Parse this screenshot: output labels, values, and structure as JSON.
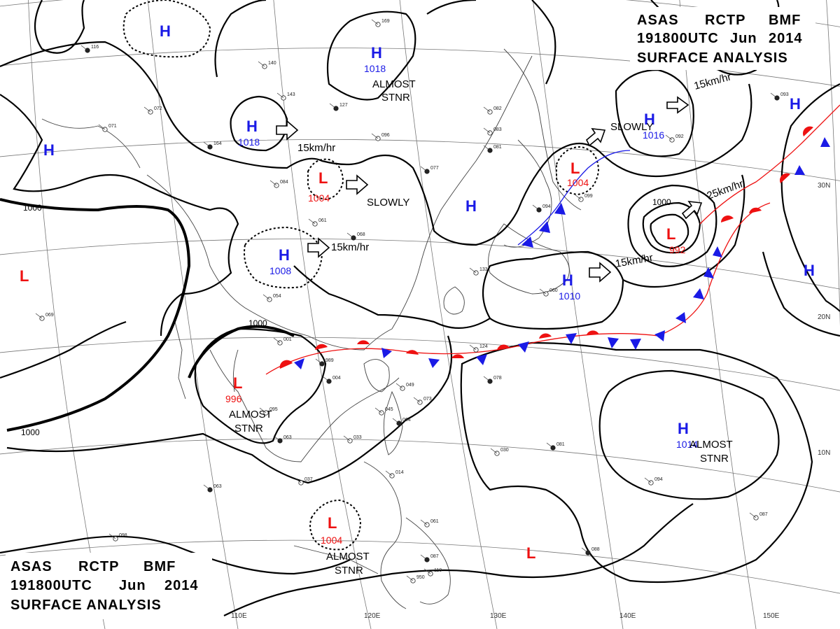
{
  "title_top": {
    "line1": [
      "ASAS",
      "RCTP",
      "BMF"
    ],
    "line2": [
      "191800UTC",
      "Jun",
      "2014"
    ],
    "line3": "SURFACE ANALYSIS"
  },
  "title_bottom": {
    "line1": [
      "ASAS",
      "RCTP",
      "BMF"
    ],
    "line2": [
      "191800UTC",
      "Jun",
      "2014"
    ],
    "line3": "SURFACE ANALYSIS"
  },
  "longitude_labels": [
    "110E",
    "120E",
    "130E",
    "140E",
    "150E"
  ],
  "latitude_labels": [
    "30N",
    "20N",
    "10N"
  ],
  "pressure_centers": {
    "h_1018_ne": {
      "type": "H",
      "value": "1018"
    },
    "h_1018_w": {
      "type": "H",
      "value": "1018"
    },
    "h_1016": {
      "type": "H",
      "value": "1016"
    },
    "h_1008": {
      "type": "H",
      "value": "1008"
    },
    "h_1010": {
      "type": "H",
      "value": "1010"
    },
    "h_1014": {
      "type": "H",
      "value": "1014"
    },
    "l_1004_n": {
      "type": "L",
      "value": "1004"
    },
    "l_1004_japan": {
      "type": "L",
      "value": "1004"
    },
    "l_992": {
      "type": "L",
      "value": "992"
    },
    "l_996": {
      "type": "L",
      "value": "996"
    },
    "l_1004_s": {
      "type": "L",
      "value": "1004"
    },
    "h_nw": {
      "type": "H"
    },
    "h_w": {
      "type": "H"
    },
    "h_mid": {
      "type": "H"
    },
    "h_e1": {
      "type": "H"
    },
    "h_e2": {
      "type": "H"
    },
    "l_w": {
      "type": "L"
    },
    "l_se": {
      "type": "L"
    }
  },
  "isobar_labels": {
    "w1000": "1000",
    "mid1000": "1000",
    "sw1000": "1000",
    "low1000": "1000"
  },
  "annotations": {
    "almost_stnr_n": [
      "ALMOST",
      "STNR"
    ],
    "almost_stnr_sw": [
      "ALMOST",
      "STNR"
    ],
    "almost_stnr_s": [
      "ALMOST",
      "STNR"
    ],
    "almost_stnr_e": [
      "ALMOST",
      "STNR"
    ],
    "slowly_mid": "SLOWLY",
    "slowly_ne": "SLOWLY",
    "speed_1": "15km/hr",
    "speed_2": "15km/hr",
    "speed_3": "15km/hr",
    "speed_4": "25km/hr",
    "speed_5": "15km/hr"
  },
  "station_samples": [
    "116",
    "071",
    "072",
    "164",
    "140",
    "143",
    "127",
    "169",
    "096",
    "077",
    "082",
    "083",
    "081",
    "084",
    "061",
    "068",
    "054",
    "001",
    "004",
    "049",
    "045",
    "064",
    "033",
    "037",
    "063",
    "061",
    "030",
    "081",
    "094",
    "087",
    "093",
    "092",
    "099",
    "094",
    "133",
    "124",
    "078",
    "073",
    "095",
    "063",
    "069",
    "060",
    "989",
    "014",
    "950",
    "087",
    "110",
    "098",
    "088"
  ]
}
